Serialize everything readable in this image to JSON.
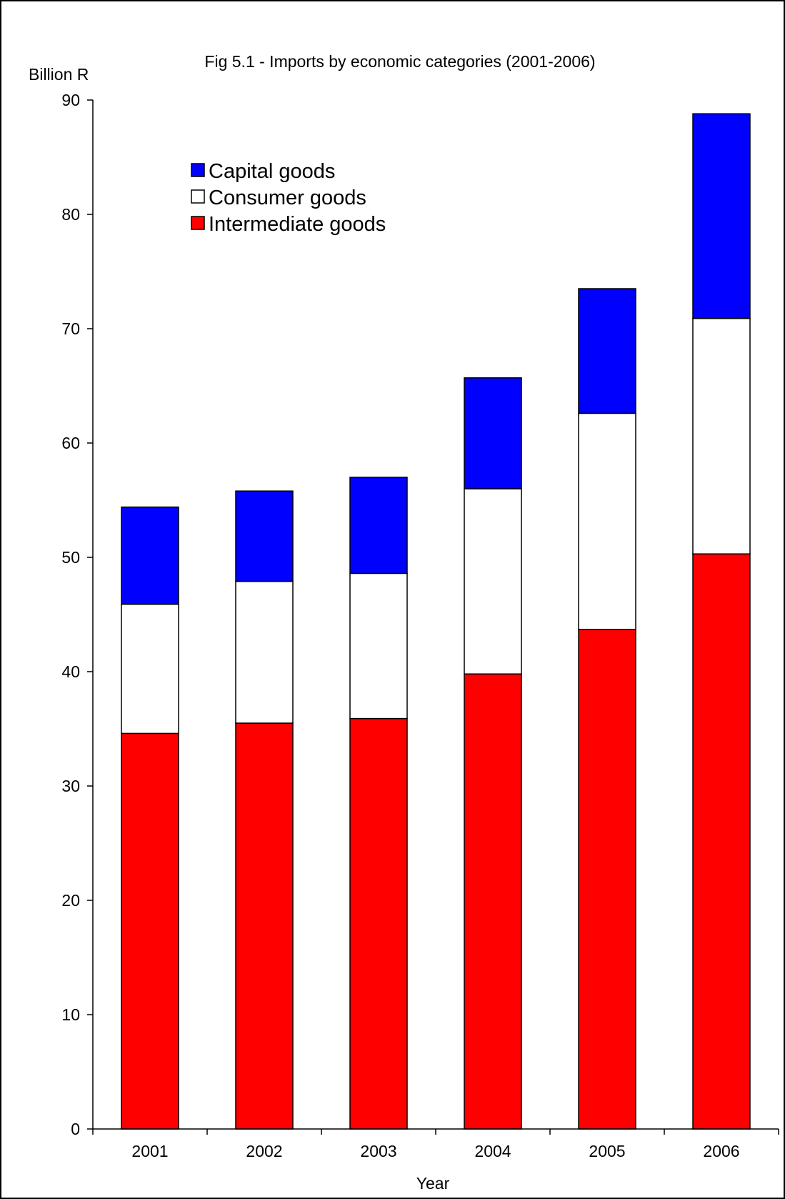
{
  "chart_data": {
    "type": "bar",
    "stacked": true,
    "title": "Fig 5.1 - Imports by economic categories (2001-2006)",
    "xlabel": "Year",
    "ylabel": "Billion R",
    "ylim": [
      0,
      90
    ],
    "yticks": [
      0,
      10,
      20,
      30,
      40,
      50,
      60,
      70,
      80,
      90
    ],
    "grid": false,
    "legend_position": "top-left",
    "categories": [
      "2001",
      "2002",
      "2003",
      "2004",
      "2005",
      "2006"
    ],
    "series": [
      {
        "name": "Intermediate goods",
        "color": "#ff0000",
        "values": [
          34.6,
          35.5,
          35.9,
          39.8,
          43.7,
          50.3
        ]
      },
      {
        "name": "Consumer goods",
        "color": "#ffffff",
        "values": [
          11.3,
          12.4,
          12.7,
          16.2,
          18.9,
          20.6
        ]
      },
      {
        "name": "Capital goods",
        "color": "#0000ff",
        "values": [
          8.5,
          7.9,
          8.4,
          9.7,
          10.9,
          17.9
        ]
      }
    ],
    "legend_order": [
      "Capital goods",
      "Consumer goods",
      "Intermediate goods"
    ]
  }
}
